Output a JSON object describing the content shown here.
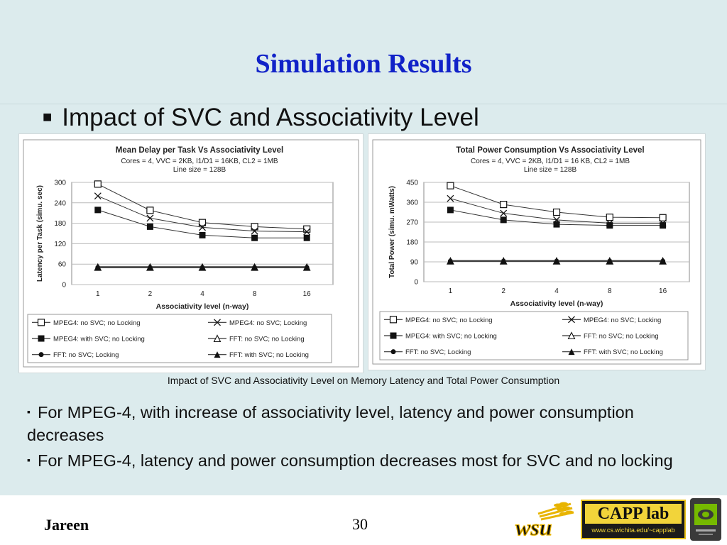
{
  "slide": {
    "title": "Simulation Results",
    "subtitle": "Impact of SVC and Associativity Level",
    "subtitle_marker": "■",
    "caption": "Impact of SVC and Associativity Level on Memory Latency and Total Power Consumption",
    "bullet_marker": "▪",
    "bullets": [
      "For MPEG-4, with increase of associativity level, latency and power consumption decreases",
      "For MPEG-4, latency and power consumption decreases most for SVC and no locking"
    ],
    "footer": {
      "author": "Jareen",
      "page": "30",
      "capp_logo_text": "CAPP lab",
      "capp_url": "www.cs.wichita.edu/~capplab",
      "wsu_logo_text": "wsu"
    }
  },
  "colors": {
    "title": "#1122c8",
    "background": "#dcebed",
    "plot_bg": "#ffffff"
  },
  "chart_data": [
    {
      "type": "line",
      "title": "Mean Delay per Task Vs Associativity  Level",
      "subtitle_lines": [
        "Cores = 4, VVC = 2KB, I1/D1 = 16KB, CL2 = 1MB",
        "Line size = 128B"
      ],
      "xlabel": "Associativity level (n-way)",
      "ylabel": "Latency per Task (simu. sec)",
      "categories": [
        "1",
        "2",
        "4",
        "8",
        "16"
      ],
      "ylim": [
        0,
        300
      ],
      "yticks": [
        0,
        60,
        120,
        180,
        240,
        300
      ],
      "grid": true,
      "legend_position": "bottom",
      "series": [
        {
          "name": "MPEG4: no SVC; no Locking",
          "marker": "square-open",
          "values": [
            295,
            218,
            182,
            170,
            163
          ]
        },
        {
          "name": "MPEG4: no SVC; Locking",
          "marker": "x",
          "values": [
            260,
            195,
            168,
            157,
            155
          ]
        },
        {
          "name": "MPEG4: with SVC; no Locking",
          "marker": "square-filled",
          "values": [
            219,
            170,
            145,
            137,
            137
          ]
        },
        {
          "name": "FFT: no SVC; no Locking",
          "marker": "triangle-open",
          "values": [
            51,
            51,
            51,
            51,
            51
          ]
        },
        {
          "name": "FFT: no SVC; Locking",
          "marker": "circle-filled",
          "values": [
            50,
            50,
            50,
            50,
            50
          ]
        },
        {
          "name": "FFT: with SVC; no Locking",
          "marker": "triangle-filled",
          "values": [
            52,
            52,
            52,
            52,
            52
          ]
        }
      ]
    },
    {
      "type": "line",
      "title": "Total Power Consumption  Vs Associativity  Level",
      "subtitle_lines": [
        "Cores = 4, VVC = 2KB, I1/D1 = 16 KB, CL2 = 1MB",
        "Line size = 128B"
      ],
      "xlabel": "Associativity level (n-way)",
      "ylabel": "Total Power (simu. mWatts)",
      "categories": [
        "1",
        "2",
        "4",
        "8",
        "16"
      ],
      "ylim": [
        0,
        450
      ],
      "yticks": [
        0,
        90,
        180,
        270,
        360,
        450
      ],
      "grid": true,
      "legend_position": "bottom",
      "series": [
        {
          "name": "MPEG4: no SVC; no Locking",
          "marker": "square-open",
          "values": [
            435,
            350,
            315,
            292,
            290
          ]
        },
        {
          "name": "MPEG4: no SVC; Locking",
          "marker": "x",
          "values": [
            377,
            310,
            280,
            265,
            265
          ]
        },
        {
          "name": "MPEG4: with SVC; no Locking",
          "marker": "square-filled",
          "values": [
            325,
            280,
            260,
            255,
            255
          ]
        },
        {
          "name": "FFT: no SVC; no Locking",
          "marker": "triangle-open",
          "values": [
            94,
            94,
            94,
            94,
            94
          ]
        },
        {
          "name": "FFT: no SVC; Locking",
          "marker": "circle-filled",
          "values": [
            93,
            93,
            93,
            93,
            93
          ]
        },
        {
          "name": "FFT: with SVC; no Locking",
          "marker": "triangle-filled",
          "values": [
            95,
            95,
            95,
            95,
            95
          ]
        }
      ]
    }
  ]
}
